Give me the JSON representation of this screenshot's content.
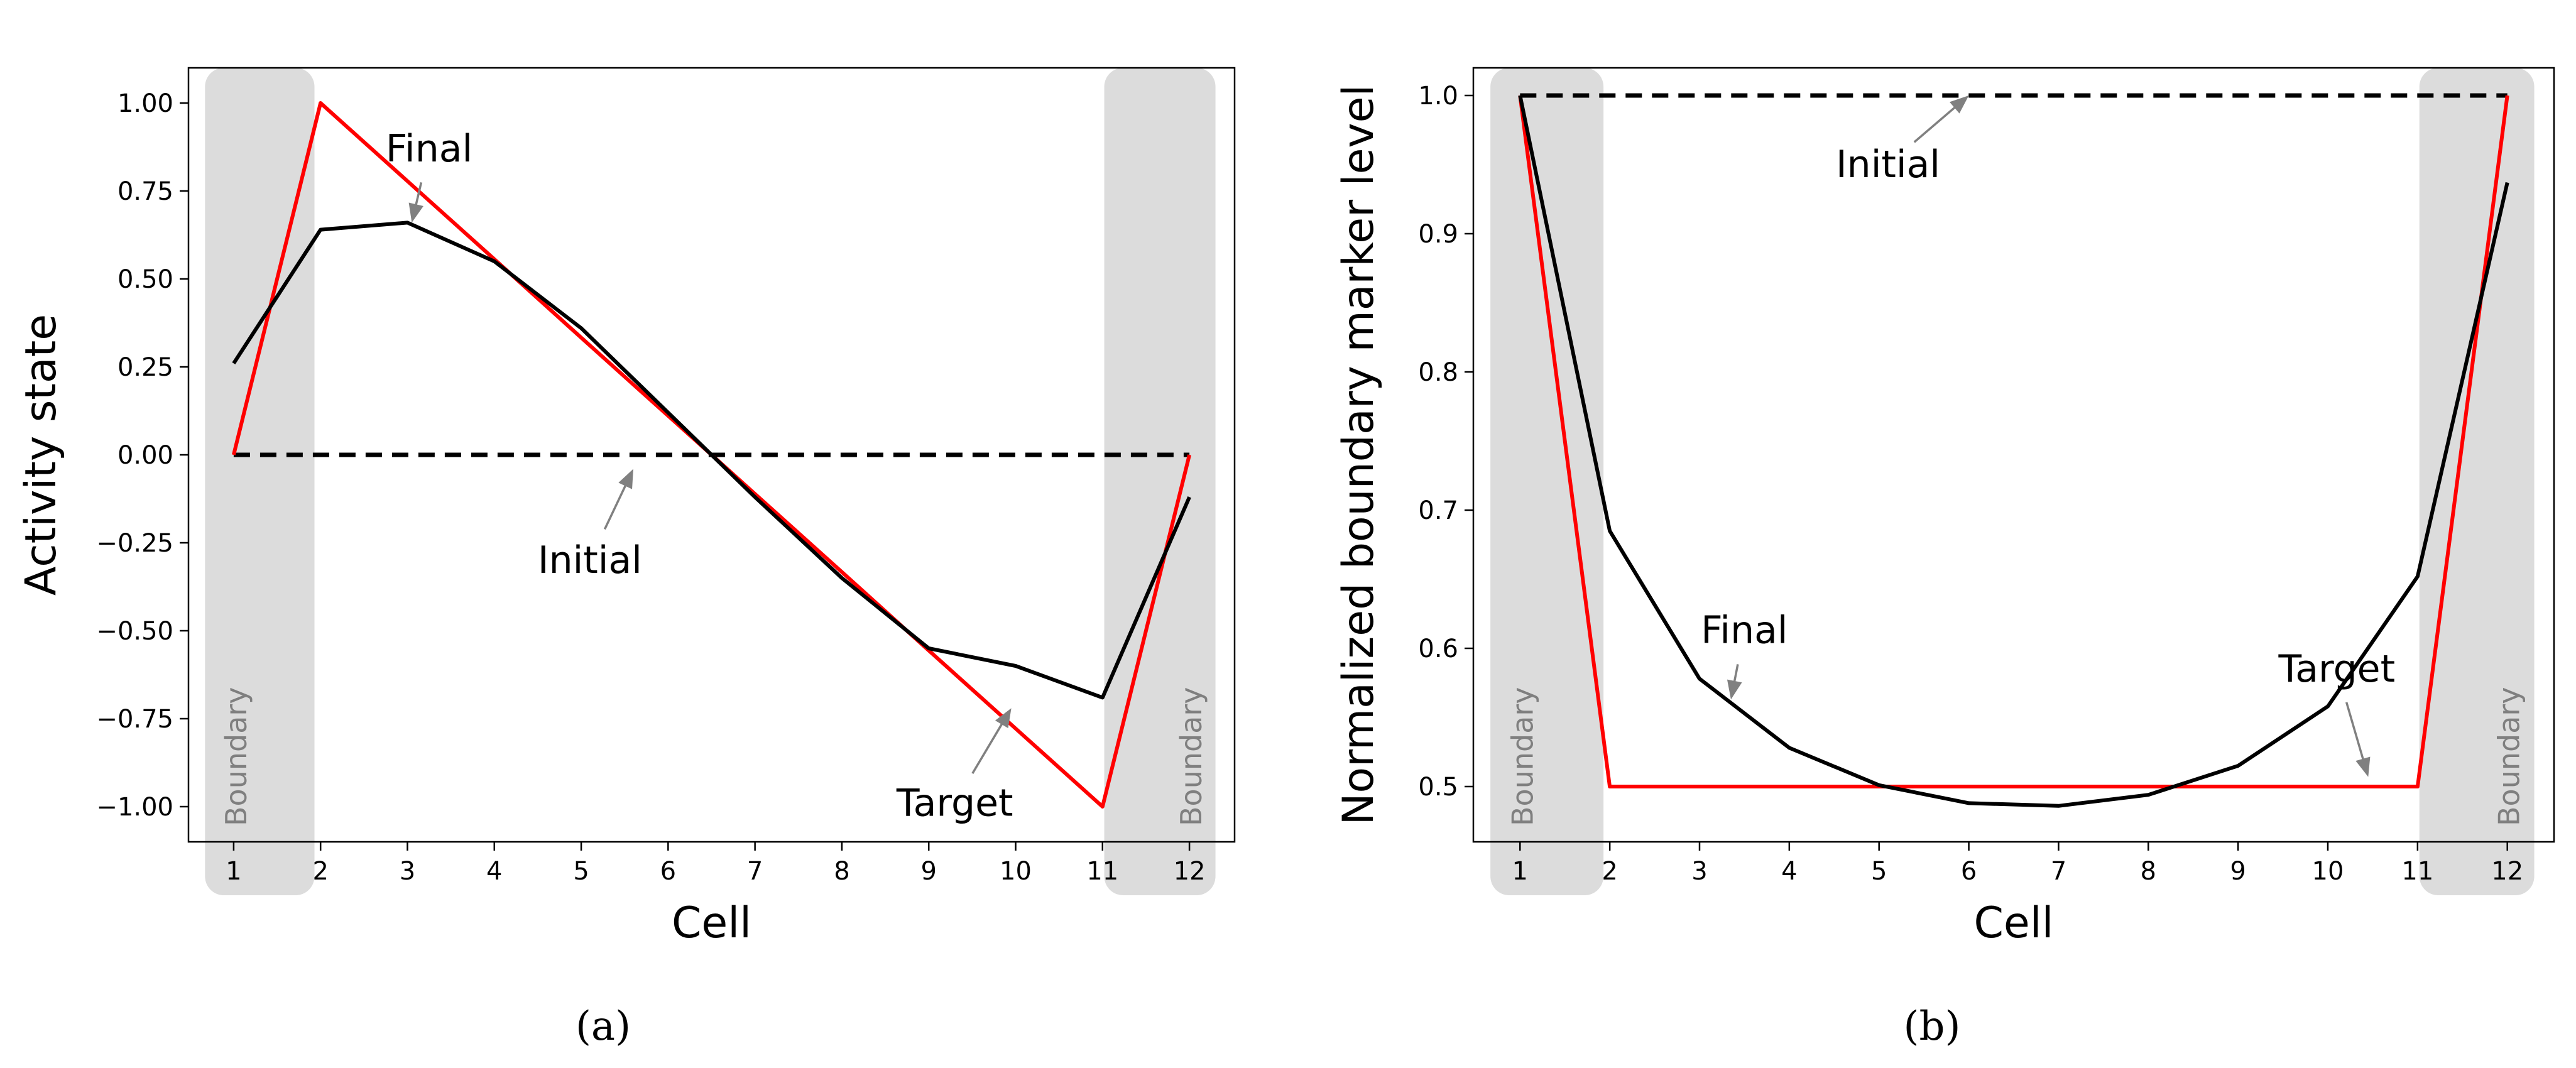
{
  "chart_data": [
    {
      "type": "line",
      "panel_label": "(a)",
      "xlabel": "Cell",
      "ylabel": "Activity state",
      "categories": [
        1,
        2,
        3,
        4,
        5,
        6,
        7,
        8,
        9,
        10,
        11,
        12
      ],
      "ylim": [
        -1.1,
        1.1
      ],
      "yticks": [
        1.0,
        0.75,
        0.5,
        0.25,
        0.0,
        -0.25,
        -0.5,
        -0.75,
        -1.0
      ],
      "ytick_labels": [
        "1.00",
        "0.75",
        "0.50",
        "0.25",
        "0.00",
        "−0.25",
        "−0.50",
        "−0.75",
        "−1.00"
      ],
      "boundary_label": "Boundary",
      "series": [
        {
          "name": "Final",
          "color": "#000000",
          "style": "solid",
          "values": [
            0.26,
            0.64,
            0.66,
            0.55,
            0.36,
            0.12,
            -0.12,
            -0.35,
            -0.55,
            -0.6,
            -0.69,
            -0.12
          ]
        },
        {
          "name": "Initial",
          "color": "#000000",
          "style": "dashed",
          "values": [
            0,
            0,
            0,
            0,
            0,
            0,
            0,
            0,
            0,
            0,
            0,
            0
          ]
        },
        {
          "name": "Target",
          "color": "#ff0000",
          "style": "solid",
          "values": [
            0.0,
            1.0,
            0.778,
            0.556,
            0.333,
            0.111,
            -0.111,
            -0.333,
            -0.556,
            -0.778,
            -1.0,
            0.0
          ]
        }
      ],
      "annotations": [
        {
          "text": "Final",
          "target": [
            3.05,
            0.66
          ],
          "label_pos": [
            3.25,
            0.87
          ]
        },
        {
          "text": "Initial",
          "target": [
            5.6,
            -0.04
          ],
          "label_pos": [
            5.1,
            -0.3
          ]
        },
        {
          "text": "Target",
          "target": [
            9.95,
            -0.72
          ],
          "label_pos": [
            9.3,
            -0.99
          ]
        }
      ]
    },
    {
      "type": "line",
      "panel_label": "(b)",
      "xlabel": "Cell",
      "ylabel": "Normalized boundary marker level",
      "categories": [
        1,
        2,
        3,
        4,
        5,
        6,
        7,
        8,
        9,
        10,
        11,
        12
      ],
      "ylim": [
        0.46,
        1.02
      ],
      "yticks": [
        1.0,
        0.9,
        0.8,
        0.7,
        0.6,
        0.5
      ],
      "ytick_labels": [
        "1.0",
        "0.9",
        "0.8",
        "0.7",
        "0.6",
        "0.5"
      ],
      "boundary_label": "Boundary",
      "series": [
        {
          "name": "Final",
          "color": "#000000",
          "style": "solid",
          "values": [
            1.0,
            0.685,
            0.578,
            0.528,
            0.501,
            0.488,
            0.486,
            0.494,
            0.515,
            0.558,
            0.652,
            0.937
          ]
        },
        {
          "name": "Initial",
          "color": "#000000",
          "style": "dashed",
          "values": [
            1,
            1,
            1,
            1,
            1,
            1,
            1,
            1,
            1,
            1,
            1,
            1
          ]
        },
        {
          "name": "Target",
          "color": "#ff0000",
          "style": "solid",
          "values": [
            1.0,
            0.5,
            0.5,
            0.5,
            0.5,
            0.5,
            0.5,
            0.5,
            0.5,
            0.5,
            0.5,
            1.0
          ]
        }
      ],
      "annotations": [
        {
          "text": "Final",
          "target": [
            3.35,
            0.563
          ],
          "label_pos": [
            3.5,
            0.613
          ]
        },
        {
          "text": "Initial",
          "target": [
            6.0,
            1.0
          ],
          "label_pos": [
            5.1,
            0.95
          ]
        },
        {
          "text": "Target",
          "target": [
            10.45,
            0.507
          ],
          "label_pos": [
            10.1,
            0.585
          ]
        }
      ]
    }
  ]
}
